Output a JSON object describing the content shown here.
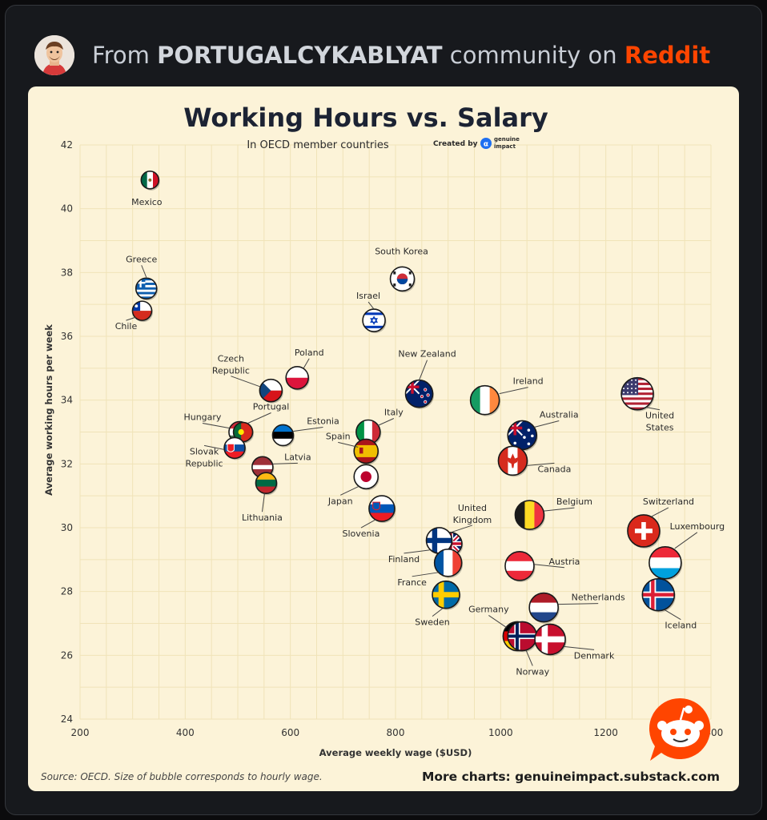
{
  "header": {
    "prefix": "From",
    "community": "PORTUGALCYKABLYAT",
    "middle": "community on",
    "platform": "Reddit"
  },
  "colors": {
    "background": "#17191d",
    "card": "#fcf3d8",
    "reddit": "#ff4500",
    "title": "#1c2333"
  },
  "chart_data": {
    "type": "scatter",
    "title": "Working Hours vs. Salary",
    "subtitle": "In OECD member countries",
    "credit": "Created by",
    "credit_brand": [
      "genuine",
      "impact"
    ],
    "xlabel": "Average weekly wage ($USD)",
    "ylabel": "Average working hours per week",
    "xlim": [
      200,
      1400
    ],
    "ylim": [
      24,
      42
    ],
    "xticks": [
      200,
      400,
      600,
      800,
      1000,
      1200,
      1400
    ],
    "yticks": [
      24,
      26,
      28,
      30,
      32,
      34,
      36,
      38,
      40,
      42
    ],
    "grid": true,
    "note": "Source: OECD. Size of bubble corresponds to hourly wage.",
    "more_charts": "More charts: genuineimpact.substack.com",
    "points": [
      {
        "label": [
          "Mexico"
        ],
        "x": 333,
        "y": 40.9,
        "flag": "mexico"
      },
      {
        "label": [
          "Greece"
        ],
        "x": 326,
        "y": 37.5,
        "flag": "greece"
      },
      {
        "label": [
          "Chile"
        ],
        "x": 318,
        "y": 36.8,
        "flag": "chile"
      },
      {
        "label": [
          "South Korea"
        ],
        "x": 813,
        "y": 37.8,
        "flag": "south-korea"
      },
      {
        "label": [
          "Israel"
        ],
        "x": 759,
        "y": 36.5,
        "flag": "israel"
      },
      {
        "label": [
          "Czech",
          "Republic"
        ],
        "x": 563,
        "y": 34.3,
        "flag": "czech-republic"
      },
      {
        "label": [
          "Poland"
        ],
        "x": 613,
        "y": 34.7,
        "flag": "poland"
      },
      {
        "label": [
          "New Zealand"
        ],
        "x": 845,
        "y": 34.2,
        "flag": "new-zealand"
      },
      {
        "label": [
          "Ireland"
        ],
        "x": 970,
        "y": 34.0,
        "flag": "ireland"
      },
      {
        "label": [
          "United",
          "States"
        ],
        "x": 1260,
        "y": 34.2,
        "flag": "united-states"
      },
      {
        "label": [
          "Hungary"
        ],
        "x": 503,
        "y": 33.0,
        "flag": "hungary"
      },
      {
        "label": [
          "Portugal"
        ],
        "x": 510,
        "y": 33.0,
        "flag": "portugal"
      },
      {
        "label": [
          "Estonia"
        ],
        "x": 586,
        "y": 32.9,
        "flag": "estonia"
      },
      {
        "label": [
          "Italy"
        ],
        "x": 748,
        "y": 33.0,
        "flag": "italy"
      },
      {
        "label": [
          "Australia"
        ],
        "x": 1041,
        "y": 32.9,
        "flag": "australia"
      },
      {
        "label": [
          "Slovak",
          "Republic"
        ],
        "x": 494,
        "y": 32.5,
        "flag": "slovak-republic"
      },
      {
        "label": [
          "Spain"
        ],
        "x": 744,
        "y": 32.4,
        "flag": "spain"
      },
      {
        "label": [
          "Latvia"
        ],
        "x": 547,
        "y": 31.9,
        "flag": "latvia"
      },
      {
        "label": [
          "Canada"
        ],
        "x": 1023,
        "y": 32.1,
        "flag": "canada"
      },
      {
        "label": [
          "Lithuania"
        ],
        "x": 554,
        "y": 31.4,
        "flag": "lithuania"
      },
      {
        "label": [
          "Japan"
        ],
        "x": 744,
        "y": 31.6,
        "flag": "japan"
      },
      {
        "label": [
          "Slovenia"
        ],
        "x": 774,
        "y": 30.6,
        "flag": "slovenia"
      },
      {
        "label": [
          "Belgium"
        ],
        "x": 1055,
        "y": 30.4,
        "flag": "belgium"
      },
      {
        "label": [
          "Switzerland"
        ],
        "x": 1272,
        "y": 29.9,
        "flag": "switzerland"
      },
      {
        "label": [
          "United",
          "Kingdom"
        ],
        "x": 905,
        "y": 29.5,
        "flag": "united-kingdom"
      },
      {
        "label": [
          "Finland"
        ],
        "x": 883,
        "y": 29.6,
        "flag": "finland"
      },
      {
        "label": [
          "Luxembourg"
        ],
        "x": 1313,
        "y": 28.9,
        "flag": "luxembourg"
      },
      {
        "label": [
          "Austria"
        ],
        "x": 1036,
        "y": 28.8,
        "flag": "austria"
      },
      {
        "label": [
          "France"
        ],
        "x": 900,
        "y": 28.9,
        "flag": "france"
      },
      {
        "label": [
          "Sweden"
        ],
        "x": 896,
        "y": 27.9,
        "flag": "sweden"
      },
      {
        "label": [
          "Iceland"
        ],
        "x": 1300,
        "y": 27.9,
        "flag": "iceland"
      },
      {
        "label": [
          "Netherlands"
        ],
        "x": 1082,
        "y": 27.5,
        "flag": "netherlands"
      },
      {
        "label": [
          "Germany"
        ],
        "x": 1032,
        "y": 26.6,
        "flag": "germany"
      },
      {
        "label": [
          "Norway"
        ],
        "x": 1041,
        "y": 26.6,
        "flag": "norway"
      },
      {
        "label": [
          "Denmark"
        ],
        "x": 1094,
        "y": 26.5,
        "flag": "denmark"
      }
    ]
  }
}
